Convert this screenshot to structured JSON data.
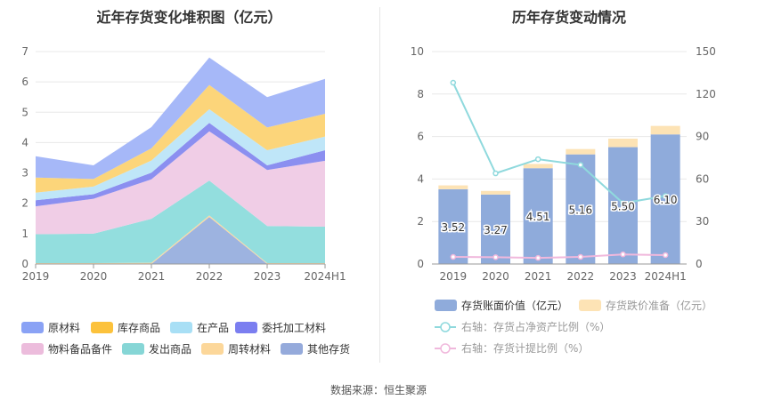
{
  "footer": {
    "source": "数据来源：恒生聚源"
  },
  "chart_data": [
    {
      "type": "area",
      "title": "近年存货变化堆积图（亿元）",
      "categories": [
        "2019",
        "2020",
        "2021",
        "2022",
        "2023",
        "2024H1"
      ],
      "ylim": [
        0,
        7
      ],
      "yticks": [
        0,
        1,
        2,
        3,
        4,
        5,
        6,
        7
      ],
      "grid": true,
      "legend_position": "bottom",
      "stacking_order": [
        "其他存货",
        "周转材料",
        "发出商品",
        "物料备品备件",
        "委托加工材料",
        "在产品",
        "库存商品",
        "原材料"
      ],
      "series": [
        {
          "name": "其他存货",
          "color": "#9db3e0",
          "values": [
            0,
            0,
            0,
            1.55,
            0,
            0
          ]
        },
        {
          "name": "周转材料",
          "color": "#fcd9a1",
          "values": [
            0.03,
            0.03,
            0.04,
            0.05,
            0.03,
            0.03
          ]
        },
        {
          "name": "发出商品",
          "color": "#93dede",
          "values": [
            0.95,
            0.97,
            1.45,
            1.15,
            1.22,
            1.2
          ]
        },
        {
          "name": "物料备品备件",
          "color": "#f0cde6",
          "values": [
            0.92,
            1.15,
            1.3,
            1.62,
            1.85,
            2.17
          ]
        },
        {
          "name": "委托加工材料",
          "color": "#8b8ff0",
          "values": [
            0.2,
            0.15,
            0.22,
            0.28,
            0.15,
            0.35
          ]
        },
        {
          "name": "在产品",
          "color": "#bfe6f8",
          "values": [
            0.25,
            0.25,
            0.4,
            0.45,
            0.5,
            0.45
          ]
        },
        {
          "name": "库存商品",
          "color": "#fcd57a",
          "values": [
            0.5,
            0.25,
            0.4,
            0.8,
            0.75,
            0.75
          ]
        },
        {
          "name": "原材料",
          "color": "#a6b8f8",
          "values": [
            0.7,
            0.45,
            0.7,
            0.9,
            1.0,
            1.15
          ]
        }
      ],
      "legend": [
        {
          "name": "原材料",
          "color": "#8aa2f5"
        },
        {
          "name": "库存商品",
          "color": "#fcc23c"
        },
        {
          "name": "在产品",
          "color": "#a8dff5"
        },
        {
          "name": "委托加工材料",
          "color": "#7b7ef0"
        },
        {
          "name": "物料备品备件",
          "color": "#ecbcdc"
        },
        {
          "name": "发出商品",
          "color": "#86d6d6"
        },
        {
          "name": "周转材料",
          "color": "#fcd79a"
        },
        {
          "name": "其他存货",
          "color": "#95aadb"
        }
      ]
    },
    {
      "type": "bar",
      "title": "历年存货变动情况",
      "categories": [
        "2019",
        "2020",
        "2021",
        "2022",
        "2023",
        "2024H1"
      ],
      "ylim": [
        0,
        10
      ],
      "yticks": [
        0,
        2,
        4,
        6,
        8,
        10
      ],
      "y2lim": [
        0,
        150
      ],
      "y2ticks": [
        0,
        30,
        60,
        90,
        120,
        150
      ],
      "grid": true,
      "legend_position": "bottom",
      "bars": [
        {
          "name": "存货账面价值（亿元）",
          "color": "#8fabdb",
          "values": [
            3.52,
            3.27,
            4.51,
            5.16,
            5.5,
            6.1
          ],
          "labels": [
            "3.52",
            "3.27",
            "4.51",
            "5.16",
            "5.50",
            "6.10"
          ]
        },
        {
          "name": "存货跌价准备（亿元）",
          "color": "#fde3b5",
          "values": [
            0.18,
            0.17,
            0.2,
            0.25,
            0.4,
            0.4
          ]
        }
      ],
      "lines": [
        {
          "name": "右轴：存货占净资产比例（%）",
          "color": "#8fd9dd",
          "values": [
            128,
            64,
            74,
            70,
            43,
            48
          ]
        },
        {
          "name": "右轴：存货计提比例（%）",
          "color": "#f0b8dc",
          "values": [
            5,
            4.8,
            4.3,
            5,
            6.8,
            6.3
          ]
        }
      ]
    }
  ]
}
